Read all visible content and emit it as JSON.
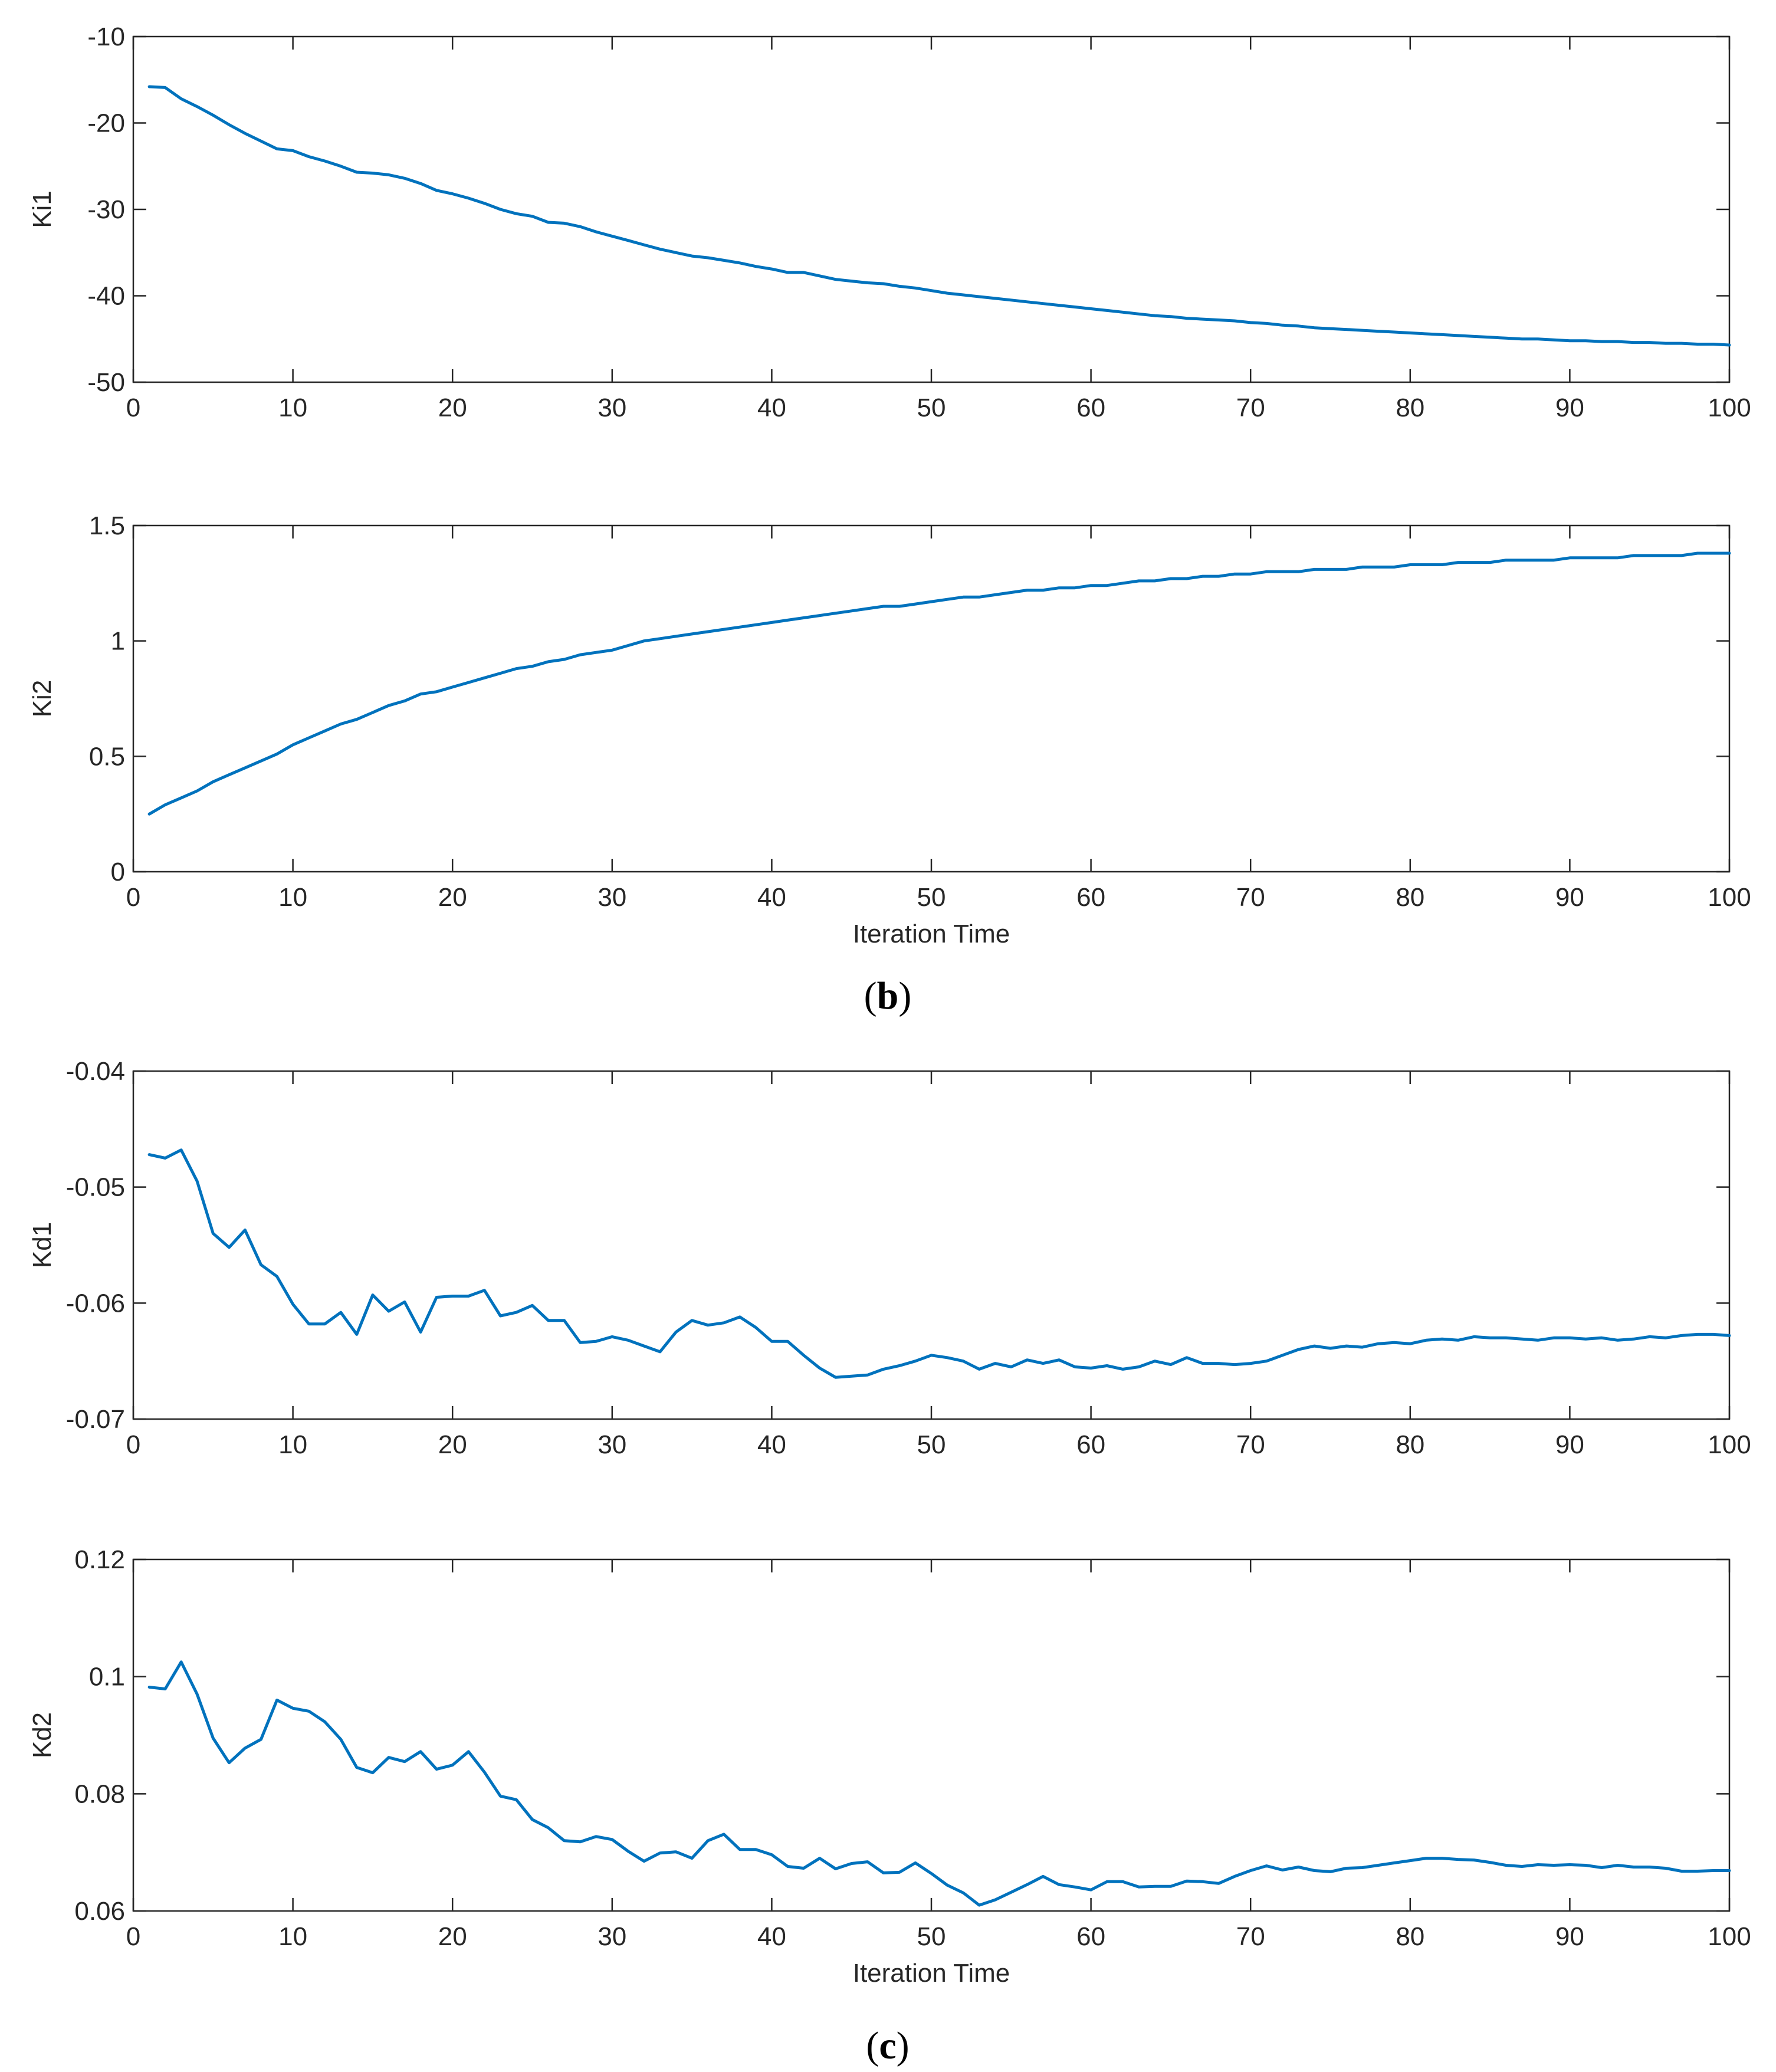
{
  "colors": {
    "line": "#0072BD",
    "axis": "#262626",
    "background": "#ffffff"
  },
  "captions": [
    {
      "letter": "b"
    },
    {
      "letter": "c"
    }
  ],
  "chart_data": [
    {
      "type": "line",
      "id": "ki1",
      "ylabel": "Ki1",
      "xlabel": "",
      "xlim": [
        0,
        100
      ],
      "ylim": [
        -50,
        -10
      ],
      "xticks": [
        0,
        10,
        20,
        30,
        40,
        50,
        60,
        70,
        80,
        90,
        100
      ],
      "yticks": [
        -50,
        -40,
        -30,
        -20,
        -10
      ],
      "yticklabels": [
        "-50",
        "-40",
        "-30",
        "-20",
        "-10"
      ],
      "x": [
        1,
        2,
        3,
        4,
        5,
        6,
        7,
        8,
        9,
        10,
        11,
        12,
        13,
        14,
        15,
        16,
        17,
        18,
        19,
        20,
        21,
        22,
        23,
        24,
        25,
        26,
        27,
        28,
        29,
        30,
        31,
        32,
        33,
        34,
        35,
        36,
        37,
        38,
        39,
        40,
        41,
        42,
        43,
        44,
        45,
        46,
        47,
        48,
        49,
        50,
        51,
        52,
        53,
        54,
        55,
        56,
        57,
        58,
        59,
        60,
        61,
        62,
        63,
        64,
        65,
        66,
        67,
        68,
        69,
        70,
        71,
        72,
        73,
        74,
        75,
        76,
        77,
        78,
        79,
        80,
        81,
        82,
        83,
        84,
        85,
        86,
        87,
        88,
        89,
        90,
        91,
        92,
        93,
        94,
        95,
        96,
        97,
        98,
        99,
        100
      ],
      "series": [
        {
          "name": "Ki1",
          "values": [
            -15.8,
            -15.9,
            -17.2,
            -18.1,
            -19.1,
            -20.2,
            -21.2,
            -22.1,
            -23.0,
            -23.2,
            -23.9,
            -24.4,
            -25.0,
            -25.7,
            -25.8,
            -26.0,
            -26.4,
            -27.0,
            -27.8,
            -28.2,
            -28.7,
            -29.3,
            -30.0,
            -30.5,
            -30.8,
            -31.5,
            -31.6,
            -32.0,
            -32.6,
            -33.1,
            -33.6,
            -34.1,
            -34.6,
            -35.0,
            -35.4,
            -35.6,
            -35.9,
            -36.2,
            -36.6,
            -36.9,
            -37.3,
            -37.3,
            -37.7,
            -38.1,
            -38.3,
            -38.5,
            -38.6,
            -38.9,
            -39.1,
            -39.4,
            -39.7,
            -39.9,
            -40.1,
            -40.3,
            -40.5,
            -40.7,
            -40.9,
            -41.1,
            -41.3,
            -41.5,
            -41.7,
            -41.9,
            -42.1,
            -42.3,
            -42.4,
            -42.6,
            -42.7,
            -42.8,
            -42.9,
            -43.1,
            -43.2,
            -43.4,
            -43.5,
            -43.7,
            -43.8,
            -43.9,
            -44.0,
            -44.1,
            -44.2,
            -44.3,
            -44.4,
            -44.5,
            -44.6,
            -44.7,
            -44.8,
            -44.9,
            -45.0,
            -45.0,
            -45.1,
            -45.2,
            -45.2,
            -45.3,
            -45.3,
            -45.4,
            -45.4,
            -45.5,
            -45.5,
            -45.6,
            -45.6,
            -45.7
          ]
        }
      ]
    },
    {
      "type": "line",
      "id": "ki2",
      "ylabel": "Ki2",
      "xlabel": "Iteration Time",
      "xlim": [
        0,
        100
      ],
      "ylim": [
        0,
        1.5
      ],
      "xticks": [
        0,
        10,
        20,
        30,
        40,
        50,
        60,
        70,
        80,
        90,
        100
      ],
      "yticks": [
        0,
        0.5,
        1,
        1.5
      ],
      "yticklabels": [
        "0",
        "0.5",
        "1",
        "1.5"
      ],
      "x": [
        1,
        2,
        3,
        4,
        5,
        6,
        7,
        8,
        9,
        10,
        11,
        12,
        13,
        14,
        15,
        16,
        17,
        18,
        19,
        20,
        21,
        22,
        23,
        24,
        25,
        26,
        27,
        28,
        29,
        30,
        31,
        32,
        33,
        34,
        35,
        36,
        37,
        38,
        39,
        40,
        41,
        42,
        43,
        44,
        45,
        46,
        47,
        48,
        49,
        50,
        51,
        52,
        53,
        54,
        55,
        56,
        57,
        58,
        59,
        60,
        61,
        62,
        63,
        64,
        65,
        66,
        67,
        68,
        69,
        70,
        71,
        72,
        73,
        74,
        75,
        76,
        77,
        78,
        79,
        80,
        81,
        82,
        83,
        84,
        85,
        86,
        87,
        88,
        89,
        90,
        91,
        92,
        93,
        94,
        95,
        96,
        97,
        98,
        99,
        100
      ],
      "series": [
        {
          "name": "Ki2",
          "values": [
            0.25,
            0.29,
            0.32,
            0.35,
            0.39,
            0.42,
            0.45,
            0.48,
            0.51,
            0.55,
            0.58,
            0.61,
            0.64,
            0.66,
            0.69,
            0.72,
            0.74,
            0.77,
            0.78,
            0.8,
            0.82,
            0.84,
            0.86,
            0.88,
            0.89,
            0.91,
            0.92,
            0.94,
            0.95,
            0.96,
            0.98,
            1.0,
            1.01,
            1.02,
            1.03,
            1.04,
            1.05,
            1.06,
            1.07,
            1.08,
            1.09,
            1.1,
            1.11,
            1.12,
            1.13,
            1.14,
            1.15,
            1.15,
            1.16,
            1.17,
            1.18,
            1.19,
            1.19,
            1.2,
            1.21,
            1.22,
            1.22,
            1.23,
            1.23,
            1.24,
            1.24,
            1.25,
            1.26,
            1.26,
            1.27,
            1.27,
            1.28,
            1.28,
            1.29,
            1.29,
            1.3,
            1.3,
            1.3,
            1.31,
            1.31,
            1.31,
            1.32,
            1.32,
            1.32,
            1.33,
            1.33,
            1.33,
            1.34,
            1.34,
            1.34,
            1.35,
            1.35,
            1.35,
            1.35,
            1.36,
            1.36,
            1.36,
            1.36,
            1.37,
            1.37,
            1.37,
            1.37,
            1.38,
            1.38,
            1.38
          ]
        }
      ]
    },
    {
      "type": "line",
      "id": "kd1",
      "ylabel": "Kd1",
      "xlabel": "",
      "xlim": [
        0,
        100
      ],
      "ylim": [
        -0.07,
        -0.04
      ],
      "xticks": [
        0,
        10,
        20,
        30,
        40,
        50,
        60,
        70,
        80,
        90,
        100
      ],
      "yticks": [
        -0.07,
        -0.06,
        -0.05,
        -0.04
      ],
      "yticklabels": [
        "-0.07",
        "-0.06",
        "-0.05",
        "-0.04"
      ],
      "x": [
        1,
        2,
        3,
        4,
        5,
        6,
        7,
        8,
        9,
        10,
        11,
        12,
        13,
        14,
        15,
        16,
        17,
        18,
        19,
        20,
        21,
        22,
        23,
        24,
        25,
        26,
        27,
        28,
        29,
        30,
        31,
        32,
        33,
        34,
        35,
        36,
        37,
        38,
        39,
        40,
        41,
        42,
        43,
        44,
        45,
        46,
        47,
        48,
        49,
        50,
        51,
        52,
        53,
        54,
        55,
        56,
        57,
        58,
        59,
        60,
        61,
        62,
        63,
        64,
        65,
        66,
        67,
        68,
        69,
        70,
        71,
        72,
        73,
        74,
        75,
        76,
        77,
        78,
        79,
        80,
        81,
        82,
        83,
        84,
        85,
        86,
        87,
        88,
        89,
        90,
        91,
        92,
        93,
        94,
        95,
        96,
        97,
        98,
        99,
        100
      ],
      "series": [
        {
          "name": "Kd1",
          "values": [
            -0.0472,
            -0.0475,
            -0.0468,
            -0.0495,
            -0.054,
            -0.0552,
            -0.0537,
            -0.0567,
            -0.0577,
            -0.0601,
            -0.0618,
            -0.0618,
            -0.0608,
            -0.0627,
            -0.0593,
            -0.0607,
            -0.0599,
            -0.0625,
            -0.0595,
            -0.0594,
            -0.0594,
            -0.0589,
            -0.0611,
            -0.0608,
            -0.0602,
            -0.0615,
            -0.0615,
            -0.0634,
            -0.0633,
            -0.0629,
            -0.0632,
            -0.0637,
            -0.0642,
            -0.0625,
            -0.0615,
            -0.0619,
            -0.0617,
            -0.0612,
            -0.0621,
            -0.0633,
            -0.0633,
            -0.0645,
            -0.0656,
            -0.0664,
            -0.0663,
            -0.0662,
            -0.0657,
            -0.0654,
            -0.065,
            -0.0645,
            -0.0647,
            -0.065,
            -0.0657,
            -0.0652,
            -0.0655,
            -0.0649,
            -0.0652,
            -0.0649,
            -0.0655,
            -0.0656,
            -0.0654,
            -0.0657,
            -0.0655,
            -0.065,
            -0.0653,
            -0.0647,
            -0.0652,
            -0.0652,
            -0.0653,
            -0.0652,
            -0.065,
            -0.0645,
            -0.064,
            -0.0637,
            -0.0639,
            -0.0637,
            -0.0638,
            -0.0635,
            -0.0634,
            -0.0635,
            -0.0632,
            -0.0631,
            -0.0632,
            -0.0629,
            -0.063,
            -0.063,
            -0.0631,
            -0.0632,
            -0.063,
            -0.063,
            -0.0631,
            -0.063,
            -0.0632,
            -0.0631,
            -0.0629,
            -0.063,
            -0.0628,
            -0.0627,
            -0.0627,
            -0.0628
          ]
        }
      ]
    },
    {
      "type": "line",
      "id": "kd2",
      "ylabel": "Kd2",
      "xlabel": "Iteration Time",
      "xlim": [
        0,
        100
      ],
      "ylim": [
        0.06,
        0.12
      ],
      "xticks": [
        0,
        10,
        20,
        30,
        40,
        50,
        60,
        70,
        80,
        90,
        100
      ],
      "yticks": [
        0.06,
        0.08,
        0.1,
        0.12
      ],
      "yticklabels": [
        "0.06",
        "0.08",
        "0.1",
        "0.12"
      ],
      "x": [
        1,
        2,
        3,
        4,
        5,
        6,
        7,
        8,
        9,
        10,
        11,
        12,
        13,
        14,
        15,
        16,
        17,
        18,
        19,
        20,
        21,
        22,
        23,
        24,
        25,
        26,
        27,
        28,
        29,
        30,
        31,
        32,
        33,
        34,
        35,
        36,
        37,
        38,
        39,
        40,
        41,
        42,
        43,
        44,
        45,
        46,
        47,
        48,
        49,
        50,
        51,
        52,
        53,
        54,
        55,
        56,
        57,
        58,
        59,
        60,
        61,
        62,
        63,
        64,
        65,
        66,
        67,
        68,
        69,
        70,
        71,
        72,
        73,
        74,
        75,
        76,
        77,
        78,
        79,
        80,
        81,
        82,
        83,
        84,
        85,
        86,
        87,
        88,
        89,
        90,
        91,
        92,
        93,
        94,
        95,
        96,
        97,
        98,
        99,
        100
      ],
      "series": [
        {
          "name": "Kd2",
          "values": [
            0.0982,
            0.0979,
            0.1025,
            0.097,
            0.0895,
            0.0853,
            0.0878,
            0.0893,
            0.096,
            0.0946,
            0.0941,
            0.0923,
            0.0893,
            0.0845,
            0.0836,
            0.0862,
            0.0855,
            0.0872,
            0.0842,
            0.0849,
            0.0872,
            0.0837,
            0.0796,
            0.079,
            0.0756,
            0.0742,
            0.072,
            0.0718,
            0.0727,
            0.0722,
            0.0702,
            0.0685,
            0.0699,
            0.0701,
            0.069,
            0.072,
            0.0731,
            0.0705,
            0.0705,
            0.0696,
            0.0676,
            0.0673,
            0.069,
            0.0672,
            0.0681,
            0.0684,
            0.0665,
            0.0666,
            0.0682,
            0.0664,
            0.0644,
            0.0631,
            0.061,
            0.0619,
            0.0632,
            0.0645,
            0.0659,
            0.0645,
            0.0641,
            0.0636,
            0.065,
            0.065,
            0.0641,
            0.0642,
            0.0642,
            0.0651,
            0.065,
            0.0647,
            0.0659,
            0.0669,
            0.0677,
            0.067,
            0.0675,
            0.0669,
            0.0667,
            0.0673,
            0.0674,
            0.0678,
            0.0682,
            0.0686,
            0.069,
            0.069,
            0.0688,
            0.0687,
            0.0683,
            0.0678,
            0.0676,
            0.0679,
            0.0678,
            0.0679,
            0.0678,
            0.0674,
            0.0678,
            0.0675,
            0.0675,
            0.0673,
            0.0668,
            0.0668,
            0.0669,
            0.0669
          ]
        }
      ]
    }
  ]
}
